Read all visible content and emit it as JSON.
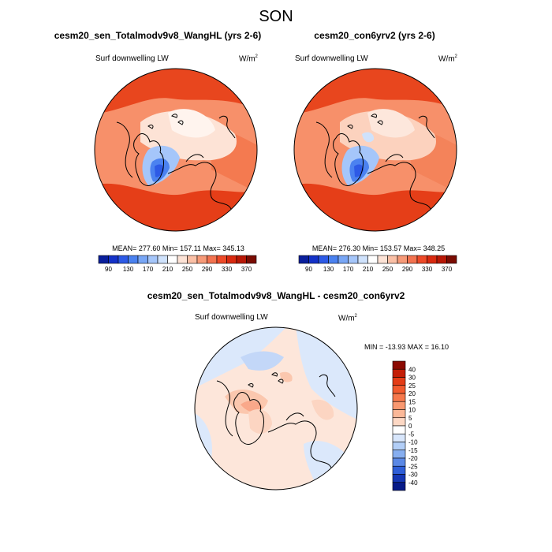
{
  "figure": {
    "title": "SON",
    "units_main": "W/m",
    "units_sup": "2"
  },
  "panels": [
    {
      "title": "cesm20_sen_Totalmodv9v8_WangHL (yrs 2-6)",
      "variable": "Surf downwelling LW",
      "stats": "MEAN= 277.60  Min= 157.11  Max= 345.13"
    },
    {
      "title": "cesm20_con6yrv2 (yrs 2-6)",
      "variable": "Surf downwelling LW",
      "stats": "MEAN= 276.30  Min= 153.57  Max= 348.25"
    },
    {
      "title": "cesm20_sen_Totalmodv9v8_WangHL - cesm20_con6yrv2",
      "variable": "Surf downwelling LW",
      "stats": "MIN = -13.93 MAX =  16.10"
    }
  ],
  "chart_data": [
    {
      "type": "heatmap",
      "projection": "north-polar-stereographic",
      "title": "cesm20_sen_Totalmodv9v8_WangHL (yrs 2-6)",
      "variable": "Surf downwelling LW",
      "units": "W/m2",
      "mean": 277.6,
      "min": 157.11,
      "max": 345.13,
      "colorbar": {
        "orientation": "horizontal",
        "levels": [
          90,
          110,
          130,
          150,
          170,
          190,
          210,
          230,
          250,
          270,
          290,
          310,
          330,
          350,
          370
        ],
        "tick_labels": [
          "90",
          "130",
          "170",
          "210",
          "250",
          "290",
          "330",
          "370"
        ],
        "colors": [
          "#0a1f9c",
          "#1432c8",
          "#2d5ae6",
          "#4b82f0",
          "#78a6f5",
          "#a5c6fa",
          "#cfe2fc",
          "#ffffff",
          "#fde3d6",
          "#fbc0a6",
          "#f79a78",
          "#f37350",
          "#ee4a28",
          "#d92a10",
          "#b81806",
          "#7a0c02"
        ]
      }
    },
    {
      "type": "heatmap",
      "projection": "north-polar-stereographic",
      "title": "cesm20_con6yrv2 (yrs 2-6)",
      "variable": "Surf downwelling LW",
      "units": "W/m2",
      "mean": 276.3,
      "min": 153.57,
      "max": 348.25,
      "colorbar": {
        "orientation": "horizontal",
        "levels": [
          90,
          110,
          130,
          150,
          170,
          190,
          210,
          230,
          250,
          270,
          290,
          310,
          330,
          350,
          370
        ],
        "tick_labels": [
          "90",
          "130",
          "170",
          "210",
          "250",
          "290",
          "330",
          "370"
        ],
        "colors": [
          "#0a1f9c",
          "#1432c8",
          "#2d5ae6",
          "#4b82f0",
          "#78a6f5",
          "#a5c6fa",
          "#cfe2fc",
          "#ffffff",
          "#fde3d6",
          "#fbc0a6",
          "#f79a78",
          "#f37350",
          "#ee4a28",
          "#d92a10",
          "#b81806",
          "#7a0c02"
        ]
      }
    },
    {
      "type": "heatmap",
      "projection": "north-polar-stereographic",
      "title": "cesm20_sen_Totalmodv9v8_WangHL - cesm20_con6yrv2",
      "variable": "Surf downwelling LW",
      "units": "W/m2",
      "min": -13.93,
      "max": 16.1,
      "colorbar": {
        "orientation": "vertical",
        "levels": [
          -40,
          -30,
          -25,
          -20,
          -15,
          -10,
          -5,
          0,
          5,
          10,
          15,
          20,
          25,
          30,
          40
        ],
        "tick_labels": [
          "40",
          "30",
          "25",
          "20",
          "15",
          "10",
          "5",
          "0",
          "-5",
          "-10",
          "-15",
          "-20",
          "-25",
          "-30",
          "-40"
        ],
        "colors_top_to_bottom": [
          "#8b0a02",
          "#c41e06",
          "#e43c16",
          "#f25a2e",
          "#f6784c",
          "#f99870",
          "#fbb898",
          "#fdd8c4",
          "#ffffff",
          "#d8e6fb",
          "#b2cef7",
          "#86aef0",
          "#5a88e6",
          "#2e5ed8",
          "#1436b4",
          "#061a88"
        ]
      }
    }
  ]
}
